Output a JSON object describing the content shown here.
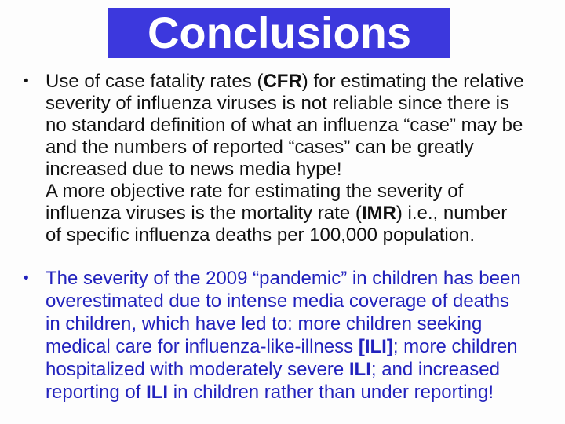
{
  "slide": {
    "title": "Conclusions",
    "bullet_char": "•",
    "colors": {
      "background": "#fdfdfd",
      "title_bar_bg": "#3c38dd",
      "title_text": "#ffffff",
      "bullet1_text": "#111111",
      "bullet2_text": "#2222bd"
    },
    "bullets": [
      {
        "color": "#111111",
        "lines": [
          [
            {
              "t": "Use of case fatality rates ("
            },
            {
              "t": "CFR",
              "b": true
            },
            {
              "t": ") for estimating the relative"
            }
          ],
          [
            {
              "t": "severity of influenza viruses is not reliable since there is"
            }
          ],
          [
            {
              "t": "no standard definition of what an influenza “case” may be"
            }
          ],
          [
            {
              "t": "and the numbers of reported “cases” can be greatly"
            }
          ],
          [
            {
              "t": "increased due to news media hype!"
            }
          ],
          [
            {
              "t": "A more objective rate for estimating the severity of"
            }
          ],
          [
            {
              "t": "influenza viruses is the mortality rate ("
            },
            {
              "t": "IMR",
              "b": true
            },
            {
              "t": ") i.e., number"
            }
          ],
          [
            {
              "t": "of specific influenza deaths per 100,000 population."
            }
          ]
        ]
      },
      {
        "color": "#2222bd",
        "lines": [
          [
            {
              "t": "The severity of the 2009 “pandemic” in children has been"
            }
          ],
          [
            {
              "t": "overestimated due to intense media coverage of deaths"
            }
          ],
          [
            {
              "t": "in children, which have led to: more children seeking"
            }
          ],
          [
            {
              "t": "medical care for influenza-like-illness "
            },
            {
              "t": "[ILI]",
              "b": true
            },
            {
              "t": "; more children"
            }
          ],
          [
            {
              "t": "hospitalized with moderately severe "
            },
            {
              "t": "ILI",
              "b": true
            },
            {
              "t": "; and increased"
            }
          ],
          [
            {
              "t": "reporting of "
            },
            {
              "t": "ILI",
              "b": true
            },
            {
              "t": " in children rather than under reporting!"
            }
          ]
        ]
      }
    ]
  }
}
